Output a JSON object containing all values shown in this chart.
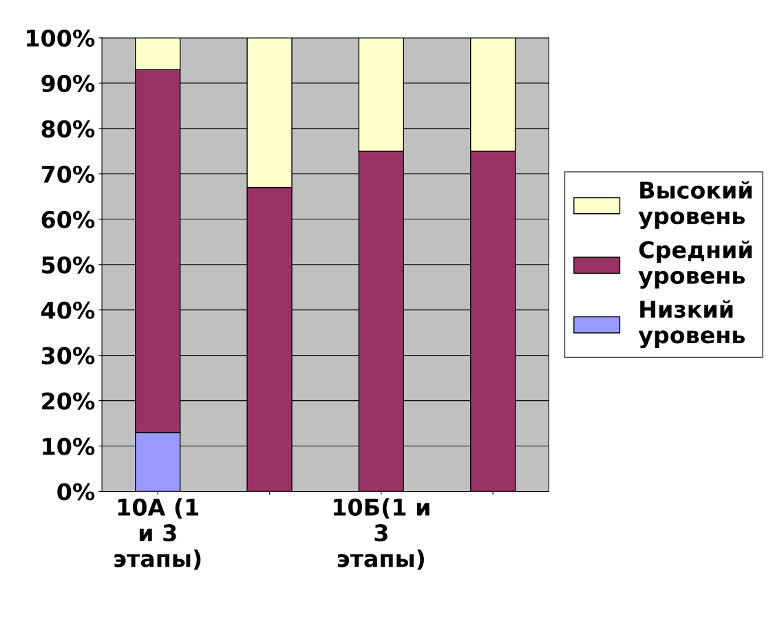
{
  "chart_data": {
    "type": "bar",
    "stacked": true,
    "categories": [
      "10А (1\nи 3\nэтапы)",
      null,
      "10Б(1 и\n3\nэтапы)",
      null
    ],
    "series": [
      {
        "name": "Низкий\nуровень",
        "color": "#9999ff",
        "values": [
          13,
          0,
          0,
          0
        ]
      },
      {
        "name": "Средний\nуровень",
        "color": "#993366",
        "values": [
          80,
          67,
          75,
          75
        ]
      },
      {
        "name": "Высокий\nуровень",
        "color": "#ffffcc",
        "values": [
          7,
          33,
          25,
          25
        ]
      }
    ],
    "ylim": [
      0,
      100
    ],
    "yticks": [
      {
        "value": 0,
        "label": "0%"
      },
      {
        "value": 10,
        "label": "10%"
      },
      {
        "value": 20,
        "label": "20%"
      },
      {
        "value": 30,
        "label": "30%"
      },
      {
        "value": 40,
        "label": "40%"
      },
      {
        "value": 50,
        "label": "50%"
      },
      {
        "value": 60,
        "label": "60%"
      },
      {
        "value": 70,
        "label": "70%"
      },
      {
        "value": 80,
        "label": "80%"
      },
      {
        "value": 90,
        "label": "90%"
      },
      {
        "value": 100,
        "label": "100%"
      }
    ],
    "grid": "y",
    "legend": "right"
  }
}
